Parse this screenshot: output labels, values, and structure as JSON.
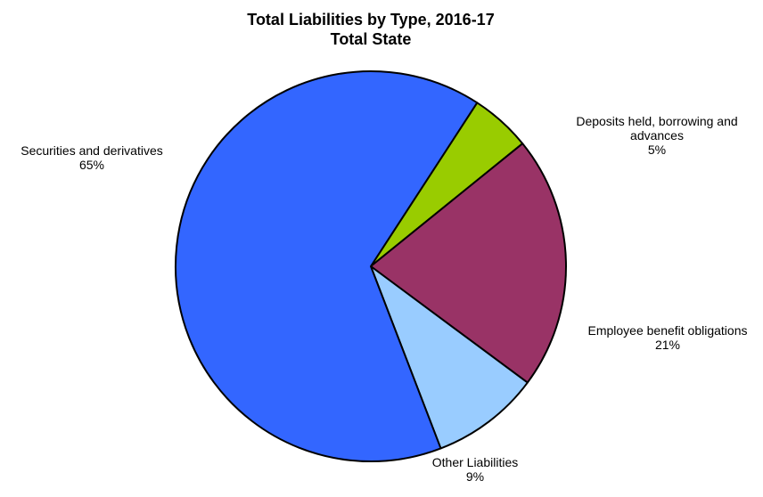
{
  "chart_data": {
    "type": "pie",
    "title": "Total Liabilities by Type, 2016-17",
    "subtitle": "Total State",
    "slices": [
      {
        "label": "Deposits held, borrowing and advances",
        "label_lines": [
          "Deposits held, borrowing and",
          "advances"
        ],
        "value": 5,
        "value_label": "5%",
        "color": "#99cc00"
      },
      {
        "label": "Employee benefit obligations",
        "label_lines": [
          "Employee benefit obligations"
        ],
        "value": 21,
        "value_label": "21%",
        "color": "#993366"
      },
      {
        "label": "Other Liabilities",
        "label_lines": [
          "Other Liabilities"
        ],
        "value": 9,
        "value_label": "9%",
        "color": "#99ccff"
      },
      {
        "label": "Securities and derivatives",
        "label_lines": [
          "Securities and derivatives"
        ],
        "value": 65,
        "value_label": "65%",
        "color": "#3366ff"
      }
    ]
  }
}
